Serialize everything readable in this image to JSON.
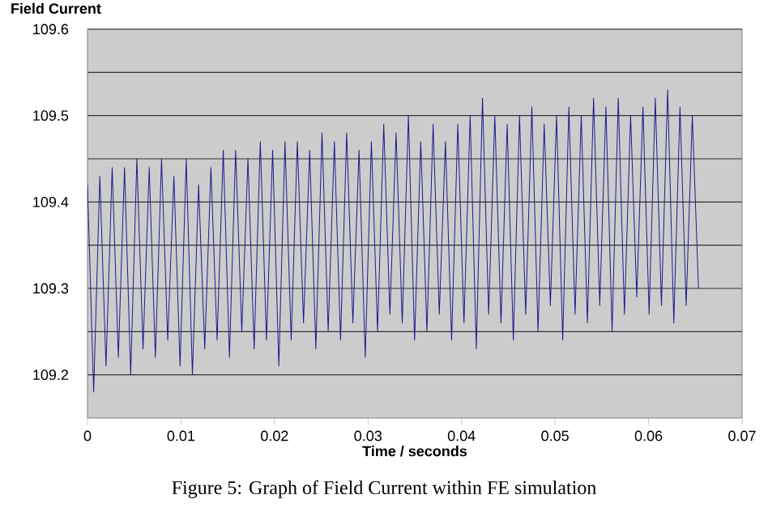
{
  "chart_data": {
    "type": "line",
    "xlabel": "Time / seconds",
    "ylabel": "Field Current",
    "annotations": [
      "Figure 5: Graph of Field Current within FE simulation"
    ],
    "xlim": [
      0,
      0.07
    ],
    "xticks": [
      0,
      0.01,
      0.02,
      0.03,
      0.04,
      0.05,
      0.06,
      0.07
    ],
    "ylim": [
      109.15,
      109.6
    ],
    "yticks": [
      109.2,
      {
        "value": 109.25,
        "label": null
      },
      109.3,
      {
        "value": 109.35,
        "label": null
      },
      109.4,
      {
        "value": 109.45,
        "label": null
      },
      109.5,
      {
        "value": 109.55,
        "label": null
      },
      109.6
    ],
    "grid": "y",
    "marker": "none",
    "line_style": "solid",
    "series": [
      {
        "color": "#1c1c8a",
        "x": [
          0,
          0.00066,
          0.00132,
          0.00198,
          0.00264,
          0.0033,
          0.00396,
          0.00462,
          0.00528,
          0.00594,
          0.0066,
          0.00726,
          0.00792,
          0.00858,
          0.00924,
          0.0099,
          0.01056,
          0.01122,
          0.01188,
          0.01254,
          0.0132,
          0.01386,
          0.01452,
          0.01518,
          0.01584,
          0.0165,
          0.01716,
          0.01782,
          0.01848,
          0.01914,
          0.0198,
          0.02046,
          0.02112,
          0.02178,
          0.02244,
          0.0231,
          0.02376,
          0.02442,
          0.02508,
          0.02574,
          0.0264,
          0.02706,
          0.02772,
          0.02838,
          0.02904,
          0.0297,
          0.03036,
          0.03102,
          0.03168,
          0.03234,
          0.033,
          0.03366,
          0.03432,
          0.03498,
          0.03564,
          0.0363,
          0.03696,
          0.03762,
          0.03828,
          0.03894,
          0.0396,
          0.04026,
          0.04092,
          0.04158,
          0.04224,
          0.0429,
          0.04356,
          0.04422,
          0.04488,
          0.04554,
          0.0462,
          0.04686,
          0.04752,
          0.04818,
          0.04884,
          0.0495,
          0.05016,
          0.05082,
          0.05148,
          0.05214,
          0.0528,
          0.05346,
          0.05412,
          0.05478,
          0.05544,
          0.0561,
          0.05676,
          0.05742,
          0.05808,
          0.05874,
          0.0594,
          0.06006,
          0.06072,
          0.06138,
          0.06204,
          0.0627,
          0.06336,
          0.06402,
          0.06468,
          0.06534
        ],
        "values": [
          109.42,
          109.18,
          109.43,
          109.21,
          109.44,
          109.22,
          109.44,
          109.2,
          109.45,
          109.23,
          109.44,
          109.22,
          109.45,
          109.24,
          109.43,
          109.21,
          109.45,
          109.2,
          109.42,
          109.23,
          109.44,
          109.24,
          109.46,
          109.22,
          109.46,
          109.25,
          109.45,
          109.23,
          109.47,
          109.24,
          109.46,
          109.21,
          109.47,
          109.24,
          109.47,
          109.26,
          109.46,
          109.23,
          109.48,
          109.25,
          109.47,
          109.24,
          109.48,
          109.26,
          109.46,
          109.22,
          109.47,
          109.25,
          109.49,
          109.27,
          109.48,
          109.26,
          109.5,
          109.24,
          109.47,
          109.25,
          109.49,
          109.27,
          109.47,
          109.24,
          109.49,
          109.26,
          109.5,
          109.23,
          109.52,
          109.27,
          109.5,
          109.26,
          109.49,
          109.24,
          109.5,
          109.27,
          109.51,
          109.25,
          109.49,
          109.28,
          109.5,
          109.24,
          109.51,
          109.27,
          109.5,
          109.26,
          109.52,
          109.28,
          109.51,
          109.25,
          109.52,
          109.27,
          109.5,
          109.29,
          109.51,
          109.27,
          109.52,
          109.28,
          109.53,
          109.26,
          109.51,
          109.28,
          109.5,
          109.3
        ]
      }
    ]
  }
}
